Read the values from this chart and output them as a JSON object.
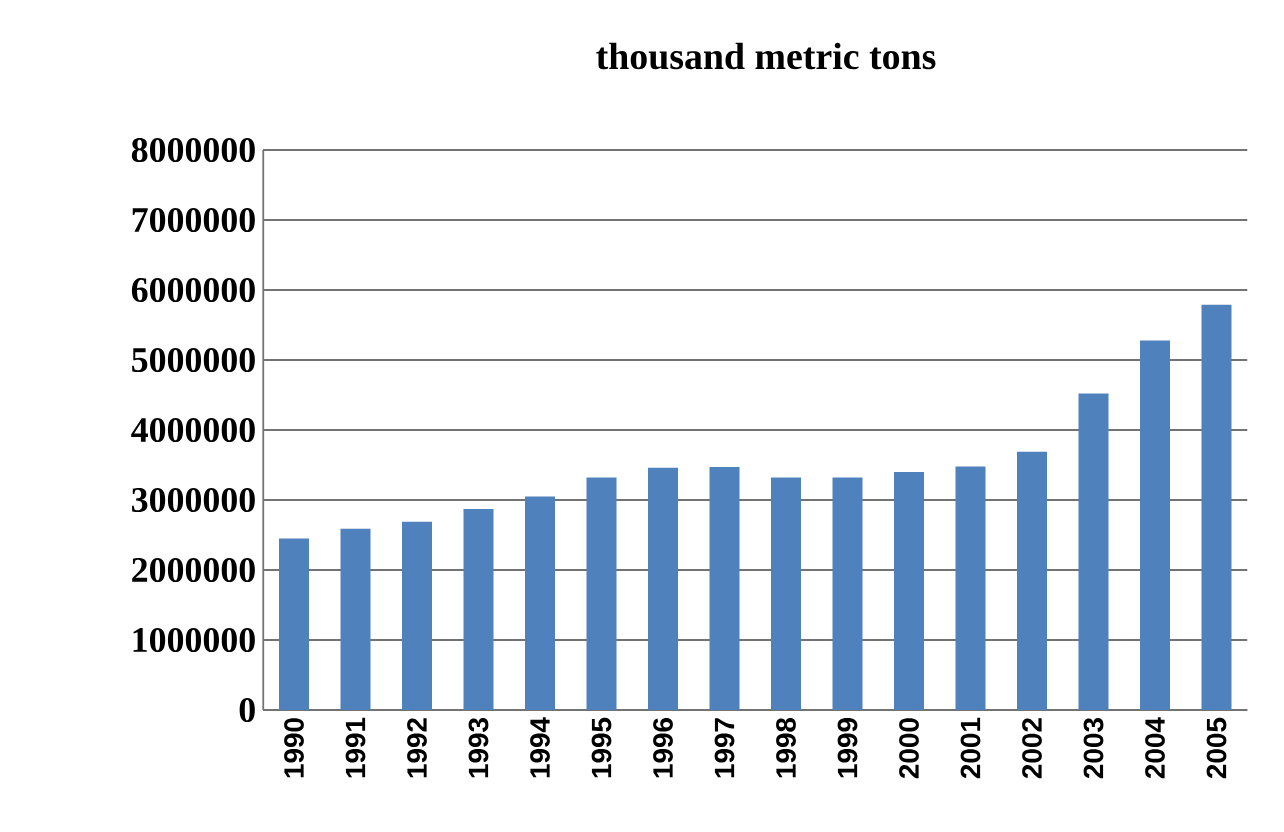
{
  "chart_data": {
    "type": "bar",
    "title": "thousand metric tons",
    "categories": [
      "1990",
      "1991",
      "1992",
      "1993",
      "1994",
      "1995",
      "1996",
      "1997",
      "1998",
      "1999",
      "2000",
      "2001",
      "2002",
      "2003",
      "2004",
      "2005"
    ],
    "values": [
      2450000,
      2590000,
      2690000,
      2870000,
      3050000,
      3320000,
      3460000,
      3470000,
      3320000,
      3320000,
      3400000,
      3480000,
      3690000,
      4520000,
      5280000,
      5790000
    ],
    "color": "#4f81bd",
    "ylim": [
      0,
      8000000
    ],
    "yticks": [
      0,
      1000000,
      2000000,
      3000000,
      4000000,
      5000000,
      6000000,
      7000000,
      8000000
    ],
    "grid": "y"
  }
}
